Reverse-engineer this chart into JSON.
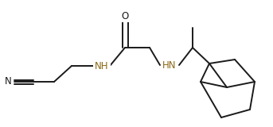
{
  "bg_color": "#ffffff",
  "bond_color": "#1a1a1a",
  "atom_color": "#8B6914",
  "line_width": 1.4,
  "figsize": [
    3.43,
    1.6
  ],
  "dpi": 100,
  "xlim": [
    0,
    343
  ],
  "ylim": [
    0,
    160
  ]
}
